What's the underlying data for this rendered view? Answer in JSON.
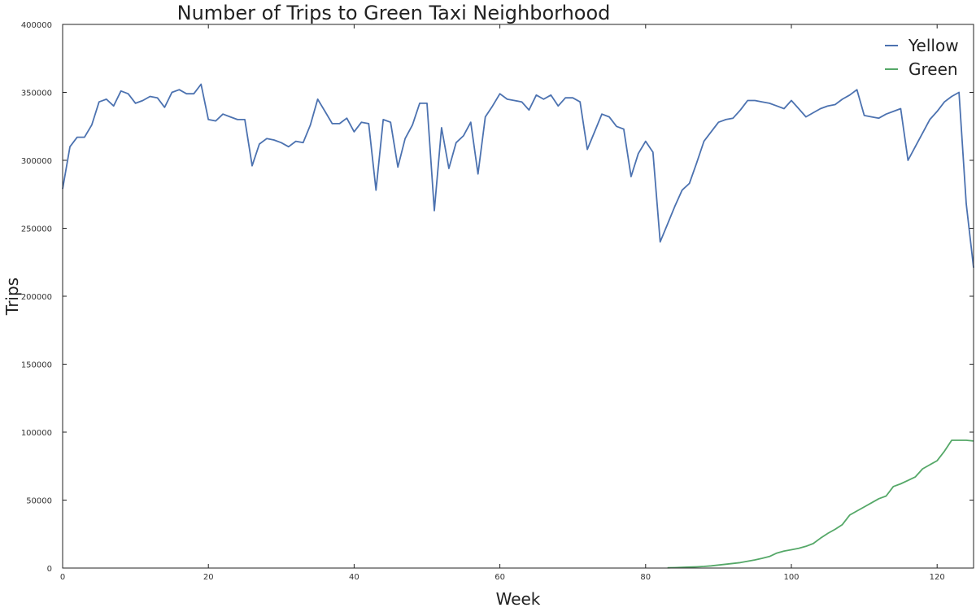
{
  "chart_data": {
    "type": "line",
    "title": "Number of Trips to Green Taxi Neighborhood",
    "xlabel": "Week",
    "ylabel": "Trips",
    "xlim": [
      0,
      125
    ],
    "ylim": [
      0,
      400000
    ],
    "xticks": [
      0,
      20,
      40,
      60,
      80,
      100,
      120
    ],
    "yticks": [
      0,
      50000,
      100000,
      150000,
      200000,
      250000,
      300000,
      350000,
      400000
    ],
    "grid": false,
    "legend": "top-right",
    "series": [
      {
        "name": "Yellow",
        "color": "#4c72b0",
        "x": [
          0,
          1,
          2,
          3,
          4,
          5,
          6,
          7,
          8,
          9,
          10,
          11,
          12,
          13,
          14,
          15,
          16,
          17,
          18,
          19,
          20,
          21,
          22,
          23,
          24,
          25,
          26,
          27,
          28,
          29,
          30,
          31,
          32,
          33,
          34,
          35,
          36,
          37,
          38,
          39,
          40,
          41,
          42,
          43,
          44,
          45,
          46,
          47,
          48,
          49,
          50,
          51,
          52,
          53,
          54,
          55,
          56,
          57,
          58,
          59,
          60,
          61,
          62,
          63,
          64,
          65,
          66,
          67,
          68,
          69,
          70,
          71,
          72,
          73,
          74,
          75,
          76,
          77,
          78,
          79,
          80,
          81,
          82,
          83,
          84,
          85,
          86,
          87,
          88,
          89,
          90,
          91,
          92,
          93,
          94,
          95,
          96,
          97,
          98,
          99,
          100,
          101,
          102,
          103,
          104,
          105,
          106,
          107,
          108,
          109,
          110,
          111,
          112,
          113,
          114,
          115,
          116,
          117,
          118,
          119,
          120,
          121,
          122,
          123,
          124,
          125
        ],
        "values": [
          279000,
          310000,
          317000,
          317000,
          326000,
          343000,
          345000,
          340000,
          351000,
          349000,
          342000,
          344000,
          347000,
          346000,
          339000,
          350000,
          352000,
          349000,
          349000,
          356000,
          330000,
          329000,
          334000,
          332000,
          330000,
          330000,
          296000,
          312000,
          316000,
          315000,
          313000,
          310000,
          314000,
          313000,
          326000,
          345000,
          336000,
          327000,
          327000,
          331000,
          321000,
          328000,
          327000,
          278000,
          330000,
          328000,
          295000,
          316000,
          326000,
          342000,
          342000,
          263000,
          324000,
          294000,
          313000,
          318000,
          328000,
          290000,
          332000,
          340000,
          349000,
          345000,
          344000,
          343000,
          337000,
          348000,
          345000,
          348000,
          340000,
          346000,
          346000,
          343000,
          308000,
          321000,
          334000,
          332000,
          325000,
          323000,
          288000,
          305000,
          314000,
          306000,
          240000,
          253000,
          266000,
          278000,
          283000,
          298000,
          314000,
          321000,
          328000,
          330000,
          331000,
          337000,
          344000,
          344000,
          343000,
          342000,
          340000,
          338000,
          344000,
          338000,
          332000,
          335000,
          338000,
          340000,
          341000,
          345000,
          348000,
          352000,
          333000,
          332000,
          331000,
          334000,
          336000,
          338000,
          300000,
          310000,
          320000,
          330000,
          336000,
          343000,
          347000,
          350000,
          268000,
          221000
        ]
      },
      {
        "name": "Green",
        "color": "#55a868",
        "x": [
          83,
          84,
          85,
          86,
          87,
          88,
          89,
          90,
          91,
          92,
          93,
          94,
          95,
          96,
          97,
          98,
          99,
          100,
          101,
          102,
          103,
          104,
          105,
          106,
          107,
          108,
          109,
          110,
          111,
          112,
          113,
          114,
          115,
          116,
          117,
          118,
          119,
          120,
          121,
          122,
          123,
          124,
          125
        ],
        "values": [
          200,
          300,
          500,
          700,
          900,
          1200,
          1600,
          2200,
          2800,
          3400,
          4000,
          5000,
          6000,
          7200,
          8500,
          11000,
          12500,
          13500,
          14500,
          16000,
          18000,
          22000,
          25500,
          28500,
          32000,
          39000,
          42000,
          45000,
          48000,
          51000,
          53000,
          60000,
          62000,
          64500,
          67000,
          73000,
          76000,
          79000,
          86000,
          94000,
          94000,
          94000,
          93500
        ]
      }
    ]
  }
}
